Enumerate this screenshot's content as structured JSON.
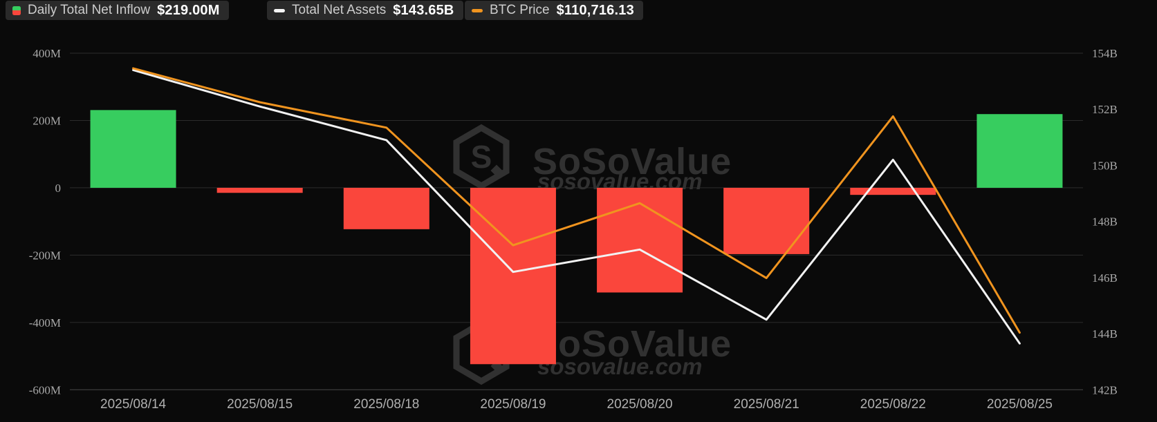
{
  "legend": {
    "items": [
      {
        "label": "Daily Total Net Inflow",
        "value": "$219.00M",
        "icon": "split-square-icon",
        "icon_colors": [
          "#37cd5f",
          "#fa463c"
        ]
      },
      {
        "label": "Total Net Assets",
        "value": "$143.65B",
        "icon": "dash-icon",
        "icon_color": "#f5f5f5"
      },
      {
        "label": "BTC Price",
        "value": "$110,716.13",
        "icon": "dash-icon",
        "icon_color": "#f0941f"
      }
    ]
  },
  "watermark": {
    "brand": "SoSoValue",
    "domain": "sosovalue.com"
  },
  "chart_data": {
    "type": "combo",
    "categories": [
      "2025/08/14",
      "2025/08/15",
      "2025/08/18",
      "2025/08/19",
      "2025/08/20",
      "2025/08/21",
      "2025/08/22",
      "2025/08/25"
    ],
    "series": [
      {
        "name": "Daily Total Net Inflow",
        "type": "bar",
        "axis": "left",
        "unit": "USD million",
        "values": [
          231,
          -15,
          -123,
          -524,
          -311,
          -197,
          -21,
          219
        ],
        "positive_color": "#37cd5f",
        "negative_color": "#fa463c"
      },
      {
        "name": "Total Net Assets",
        "type": "line",
        "axis": "right",
        "unit": "USD billion",
        "values": [
          153.4,
          152.1,
          150.9,
          146.2,
          147.0,
          144.5,
          150.2,
          143.65
        ],
        "color": "#f2f2f2"
      },
      {
        "name": "BTC Price",
        "type": "line",
        "axis": "hidden_btc",
        "unit": "USD",
        "values": [
          123280,
          121670,
          120460,
          114870,
          116870,
          113310,
          121000,
          110716.13
        ],
        "color": "#f0941f"
      }
    ],
    "left_axis": {
      "min": -600,
      "max": 400,
      "step": 200,
      "labels": [
        "400M",
        "200M",
        "0",
        "-200M",
        "-400M",
        "-600M"
      ]
    },
    "right_axis": {
      "min": 142,
      "max": 154,
      "step": 2,
      "labels": [
        "154B",
        "152B",
        "150B",
        "148B",
        "146B",
        "144B",
        "142B"
      ]
    },
    "hidden_btc_axis": {
      "min": 108000,
      "max": 124000,
      "visible": false
    },
    "grid": true,
    "legend_position": "top"
  },
  "colors": {
    "background": "#0a0a0a",
    "grid_line": "#2c2c2c",
    "axis_line": "#484848",
    "tick_text": "#a8a8a8",
    "date_text": "#b0b0b0",
    "watermark": "#313131",
    "pill_bg": "#2a2a2a",
    "pill_label": "#cdcdcd",
    "pill_value": "#ffffff",
    "green": "#37cd5f",
    "red": "#fa463c",
    "orange": "#f0941f",
    "white_line": "#f2f2f2"
  }
}
